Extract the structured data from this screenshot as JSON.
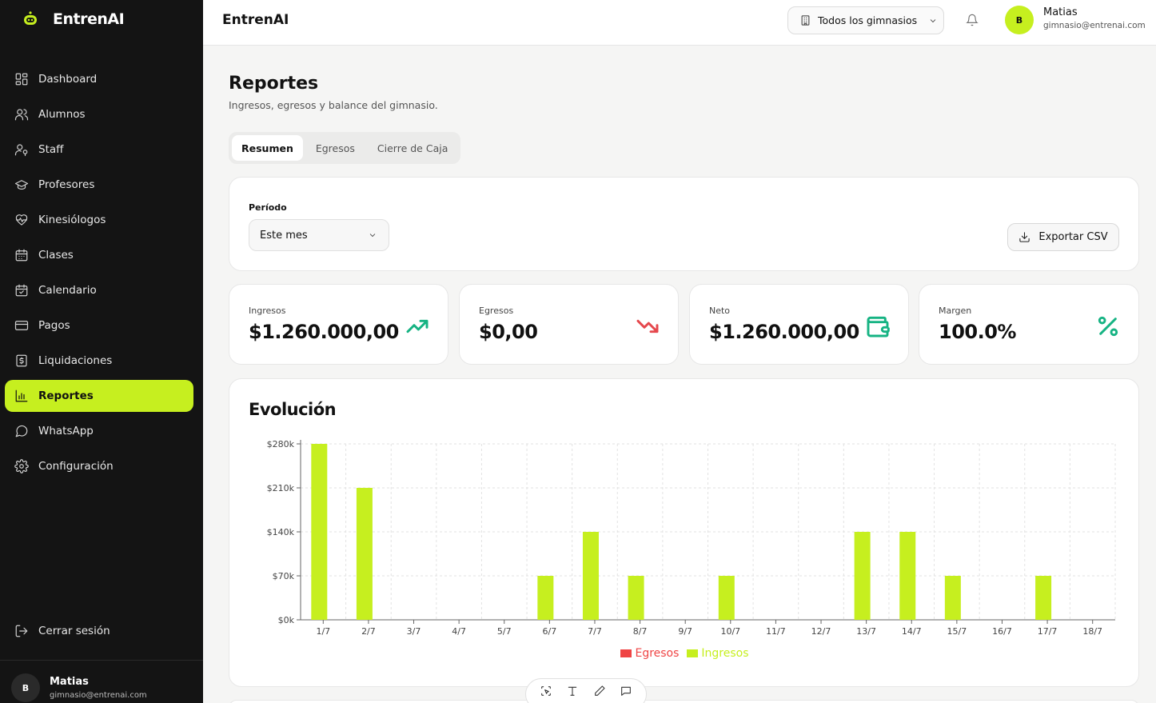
{
  "app": {
    "name": "EntrenAI"
  },
  "sidebar": {
    "items": [
      {
        "label": "Dashboard",
        "icon": "dashboard-icon"
      },
      {
        "label": "Alumnos",
        "icon": "users-icon"
      },
      {
        "label": "Staff",
        "icon": "user-key-icon"
      },
      {
        "label": "Profesores",
        "icon": "graduation-cap-icon"
      },
      {
        "label": "Kinesiólogos",
        "icon": "heart-pulse-icon"
      },
      {
        "label": "Clases",
        "icon": "calendar-grid-icon"
      },
      {
        "label": "Calendario",
        "icon": "calendar-check-icon"
      },
      {
        "label": "Pagos",
        "icon": "credit-card-icon"
      },
      {
        "label": "Liquidaciones",
        "icon": "receipt-dollar-icon"
      },
      {
        "label": "Reportes",
        "icon": "bar-chart-icon",
        "active": true
      },
      {
        "label": "WhatsApp",
        "icon": "message-circle-icon"
      },
      {
        "label": "Configuración",
        "icon": "gear-icon"
      }
    ],
    "logout_label": "Cerrar sesión",
    "user": {
      "initial": "B",
      "name": "Matias",
      "email": "gimnasio@entrenai.com"
    }
  },
  "topbar": {
    "title": "EntrenAI",
    "gym_select": "Todos los gimnasios",
    "user": {
      "initial": "B",
      "name": "Matias",
      "email": "gimnasio@entrenai.com"
    }
  },
  "page": {
    "title": "Reportes",
    "subtitle": "Ingresos, egresos y balance del gimnasio.",
    "tabs": [
      {
        "label": "Resumen",
        "active": true
      },
      {
        "label": "Egresos"
      },
      {
        "label": "Cierre de Caja"
      }
    ]
  },
  "filters": {
    "period_label": "Período",
    "period_value": "Este mes",
    "export_label": "Exportar CSV"
  },
  "stats": [
    {
      "label": "Ingresos",
      "value": "$1.260.000,00",
      "icon": "trending-up-icon",
      "color": "#16b383"
    },
    {
      "label": "Egresos",
      "value": "$0,00",
      "icon": "trending-down-icon",
      "color": "#e5484d"
    },
    {
      "label": "Neto",
      "value": "$1.260.000,00",
      "icon": "wallet-icon",
      "color": "#16b383"
    },
    {
      "label": "Margen",
      "value": "100.0%",
      "icon": "percent-icon",
      "color": "#16b383"
    }
  ],
  "colors": {
    "accent": "#c6ef1f",
    "ingresos": "#c6ef1f",
    "egresos": "#ef4444"
  },
  "chart_title": "Evolución",
  "chart_data": {
    "type": "bar",
    "categories": [
      "1/7",
      "2/7",
      "3/7",
      "4/7",
      "5/7",
      "6/7",
      "7/7",
      "8/7",
      "9/7",
      "10/7",
      "11/7",
      "12/7",
      "13/7",
      "14/7",
      "15/7",
      "16/7",
      "17/7",
      "18/7"
    ],
    "series": [
      {
        "name": "Egresos",
        "color": "#ef4444",
        "values": [
          0,
          0,
          0,
          0,
          0,
          0,
          0,
          0,
          0,
          0,
          0,
          0,
          0,
          0,
          0,
          0,
          0,
          0
        ]
      },
      {
        "name": "Ingresos",
        "color": "#c6ef1f",
        "values": [
          280000,
          210000,
          0,
          0,
          0,
          70000,
          140000,
          70000,
          0,
          70000,
          0,
          0,
          140000,
          140000,
          70000,
          0,
          70000,
          0
        ]
      }
    ],
    "ylim": [
      0,
      280000
    ],
    "yticks": [
      0,
      70000,
      140000,
      210000,
      280000
    ],
    "ytick_labels": [
      "$0k",
      "$70k",
      "$140k",
      "$210k",
      "$280k"
    ],
    "grid": true,
    "legend": "bottom-center"
  }
}
